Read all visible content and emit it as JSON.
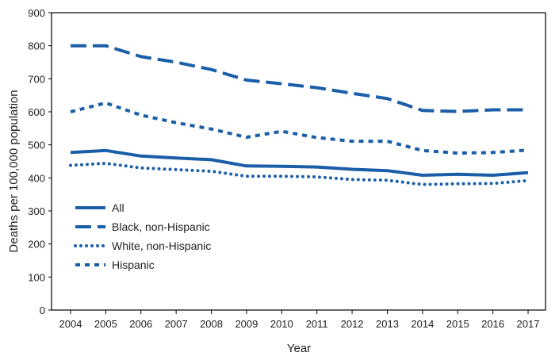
{
  "chart_data": {
    "type": "line",
    "title": "",
    "xlabel": "Year",
    "ylabel": "Deaths per 100,000 population",
    "ylim": [
      0,
      900
    ],
    "yticks": [
      0,
      100,
      200,
      300,
      400,
      500,
      600,
      700,
      800,
      900
    ],
    "x": [
      "2004",
      "2005",
      "2006",
      "2007",
      "2008",
      "2009",
      "2010",
      "2011",
      "2012",
      "2013",
      "2014",
      "2015",
      "2016",
      "2017"
    ],
    "color": "#1a5ea8",
    "legend_position": "lower-left",
    "series": [
      {
        "name": "All",
        "style": "solid",
        "values": [
          477,
          483,
          466,
          460,
          455,
          436,
          435,
          433,
          426,
          422,
          408,
          411,
          408,
          416
        ]
      },
      {
        "name": "Black, non-Hispanic",
        "style": "long-dash",
        "values": [
          800,
          800,
          767,
          750,
          728,
          696,
          685,
          673,
          656,
          640,
          604,
          601,
          606,
          606
        ]
      },
      {
        "name": "White, non-Hispanic",
        "style": "dotted",
        "values": [
          438,
          444,
          430,
          425,
          420,
          405,
          405,
          403,
          395,
          393,
          380,
          382,
          383,
          392
        ]
      },
      {
        "name": "Hispanic",
        "style": "short-dash",
        "values": [
          600,
          627,
          590,
          567,
          548,
          523,
          541,
          522,
          511,
          511,
          483,
          475,
          477,
          484
        ]
      }
    ]
  }
}
